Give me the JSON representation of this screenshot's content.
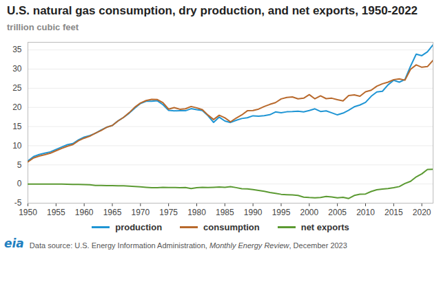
{
  "chart_data": {
    "type": "line",
    "title": "U.S. natural gas consumption, dry production, and net exports, 1950-2022",
    "subtitle": "trillion cubic feet",
    "caption": [
      "Data source: U.S. Energy Information Administration, ",
      "Monthly Energy Review",
      ", December 2023"
    ],
    "logo": "eia",
    "x": [
      1950,
      1951,
      1952,
      1953,
      1954,
      1955,
      1956,
      1957,
      1958,
      1959,
      1960,
      1961,
      1962,
      1963,
      1964,
      1965,
      1966,
      1967,
      1968,
      1969,
      1970,
      1971,
      1972,
      1973,
      1974,
      1975,
      1976,
      1977,
      1978,
      1979,
      1980,
      1981,
      1982,
      1983,
      1984,
      1985,
      1986,
      1987,
      1988,
      1989,
      1990,
      1991,
      1992,
      1993,
      1994,
      1995,
      1996,
      1997,
      1998,
      1999,
      2000,
      2001,
      2002,
      2003,
      2004,
      2005,
      2006,
      2007,
      2008,
      2009,
      2010,
      2011,
      2012,
      2013,
      2014,
      2015,
      2016,
      2017,
      2018,
      2019,
      2020,
      2021,
      2022
    ],
    "series": [
      {
        "name": "production",
        "color": "#1f95d4",
        "values": [
          6.02,
          7.16,
          7.69,
          8.06,
          8.39,
          9.03,
          9.66,
          10.25,
          10.57,
          11.55,
          12.23,
          12.66,
          13.25,
          14.08,
          14.82,
          15.29,
          16.47,
          17.39,
          18.49,
          19.83,
          21.01,
          21.61,
          21.62,
          21.73,
          20.71,
          19.24,
          19.1,
          19.16,
          19.12,
          19.66,
          19.4,
          19.18,
          17.82,
          16.09,
          17.47,
          16.45,
          16.06,
          16.62,
          17.1,
          17.31,
          17.81,
          17.7,
          17.84,
          18.1,
          18.82,
          18.6,
          18.85,
          18.9,
          19.02,
          18.83,
          19.18,
          19.62,
          18.93,
          19.1,
          18.59,
          18.05,
          18.5,
          19.27,
          20.16,
          20.62,
          21.32,
          22.9,
          24.03,
          24.21,
          25.89,
          27.07,
          26.59,
          27.29,
          30.77,
          33.9,
          33.51,
          34.52,
          36.35
        ]
      },
      {
        "name": "consumption",
        "color": "#b8692c",
        "values": [
          5.77,
          6.81,
          7.29,
          7.64,
          8.05,
          8.69,
          9.29,
          9.85,
          10.3,
          11.32,
          11.97,
          12.49,
          13.27,
          13.97,
          14.81,
          15.28,
          16.45,
          17.39,
          18.63,
          20.06,
          21.14,
          21.79,
          22.1,
          22.05,
          21.22,
          19.54,
          19.95,
          19.52,
          19.63,
          20.24,
          19.88,
          19.4,
          18.0,
          16.83,
          17.95,
          17.28,
          16.22,
          17.21,
          18.03,
          19.12,
          19.17,
          19.56,
          20.23,
          20.79,
          21.25,
          22.21,
          22.61,
          22.74,
          22.25,
          22.41,
          23.33,
          22.24,
          23.01,
          22.28,
          22.4,
          22.01,
          21.7,
          23.1,
          23.28,
          22.91,
          24.09,
          24.48,
          25.54,
          26.16,
          26.59,
          27.24,
          27.44,
          27.11,
          29.96,
          31.1,
          30.48,
          30.66,
          32.31
        ]
      },
      {
        "name": "net exports",
        "color": "#5b9a32",
        "values": [
          0.0,
          0.0,
          0.0,
          0.0,
          0.0,
          0.0,
          0.0,
          -0.05,
          -0.1,
          -0.1,
          -0.15,
          -0.2,
          -0.38,
          -0.4,
          -0.42,
          -0.44,
          -0.45,
          -0.48,
          -0.55,
          -0.65,
          -0.75,
          -0.85,
          -0.95,
          -0.95,
          -0.88,
          -0.9,
          -0.9,
          -0.95,
          -0.9,
          -1.2,
          -0.95,
          -0.85,
          -0.9,
          -0.86,
          -0.79,
          -0.89,
          -0.69,
          -0.94,
          -1.22,
          -1.28,
          -1.45,
          -1.67,
          -1.92,
          -2.21,
          -2.46,
          -2.69,
          -2.78,
          -2.84,
          -2.99,
          -3.42,
          -3.54,
          -3.6,
          -3.5,
          -3.26,
          -3.4,
          -3.61,
          -3.46,
          -3.78,
          -2.99,
          -2.68,
          -2.6,
          -1.95,
          -1.51,
          -1.3,
          -1.17,
          -0.95,
          -0.67,
          0.13,
          0.69,
          1.86,
          2.65,
          3.81,
          3.86
        ]
      }
    ],
    "xlim": [
      1950,
      2022
    ],
    "xticks": [
      1950,
      1955,
      1960,
      1965,
      1970,
      1975,
      1980,
      1985,
      1990,
      1995,
      2000,
      2005,
      2010,
      2015,
      2020
    ],
    "ylim": [
      -5,
      37
    ],
    "yticks": [
      -5,
      0,
      5,
      10,
      15,
      20,
      25,
      30,
      35
    ],
    "grid": true,
    "legend": "bottom"
  }
}
